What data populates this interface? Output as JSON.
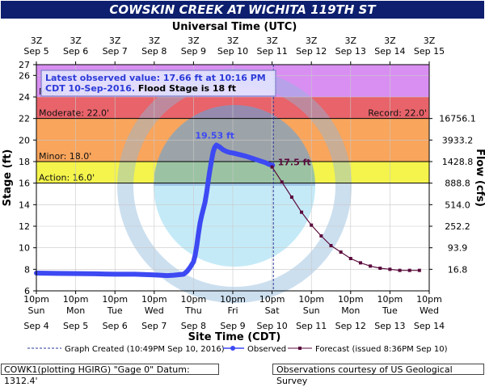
{
  "header": {
    "title": "COWSKIN CREEK AT WICHITA 119TH ST"
  },
  "chart_data": {
    "type": "line",
    "title": "COWSKIN CREEK AT WICHITA 119TH ST",
    "top_axis_label": "Universal Time (UTC)",
    "xlabel": "Site Time (CDT)",
    "ylabel": "Stage (ft)",
    "y2label": "Flow (cfs)",
    "ylim": [
      6,
      27
    ],
    "grid": true,
    "y_ticks": [
      6,
      8,
      10,
      12,
      14,
      16,
      18,
      20,
      22,
      24,
      26,
      27
    ],
    "y2_ticks": [
      {
        "stage": 8,
        "label": "16.8"
      },
      {
        "stage": 10,
        "label": "93.9"
      },
      {
        "stage": 12,
        "label": "252.2"
      },
      {
        "stage": 14,
        "label": "514.0"
      },
      {
        "stage": 16,
        "label": "888.8"
      },
      {
        "stage": 18,
        "label": "1428.8"
      },
      {
        "stage": 20,
        "label": "3933.2"
      },
      {
        "stage": 22,
        "label": "16756.1"
      }
    ],
    "x_domain_hours": [
      0,
      240
    ],
    "x_ticks_bottom": [
      {
        "h": 0,
        "l1": "10pm",
        "l2": "Sun",
        "l3": "Sep 4"
      },
      {
        "h": 24,
        "l1": "10pm",
        "l2": "Mon",
        "l3": "Sep 5"
      },
      {
        "h": 48,
        "l1": "10pm",
        "l2": "Tue",
        "l3": "Sep 6"
      },
      {
        "h": 72,
        "l1": "10pm",
        "l2": "Wed",
        "l3": "Sep 7"
      },
      {
        "h": 96,
        "l1": "10pm",
        "l2": "Thu",
        "l3": "Sep 8"
      },
      {
        "h": 120,
        "l1": "10pm",
        "l2": "Fri",
        "l3": "Sep 9"
      },
      {
        "h": 144,
        "l1": "10pm",
        "l2": "Sat",
        "l3": "Sep 10"
      },
      {
        "h": 168,
        "l1": "10pm",
        "l2": "Sun",
        "l3": "Sep 11"
      },
      {
        "h": 192,
        "l1": "10pm",
        "l2": "Mon",
        "l3": "Sep 12"
      },
      {
        "h": 216,
        "l1": "10pm",
        "l2": "Tue",
        "l3": "Sep 13"
      },
      {
        "h": 240,
        "l1": "10pm",
        "l2": "Wed",
        "l3": "Sep 14"
      }
    ],
    "x_ticks_top": [
      {
        "h": 0,
        "l1": "3Z",
        "l2": "Sep 5"
      },
      {
        "h": 24,
        "l1": "3Z",
        "l2": "Sep 6"
      },
      {
        "h": 48,
        "l1": "3Z",
        "l2": "Sep 7"
      },
      {
        "h": 72,
        "l1": "3Z",
        "l2": "Sep 8"
      },
      {
        "h": 96,
        "l1": "3Z",
        "l2": "Sep 9"
      },
      {
        "h": 120,
        "l1": "3Z",
        "l2": "Sep 10"
      },
      {
        "h": 144,
        "l1": "3Z",
        "l2": "Sep 11"
      },
      {
        "h": 168,
        "l1": "3Z",
        "l2": "Sep 12"
      },
      {
        "h": 192,
        "l1": "3Z",
        "l2": "Sep 13"
      },
      {
        "h": 216,
        "l1": "3Z",
        "l2": "Sep 14"
      },
      {
        "h": 240,
        "l1": "3Z",
        "l2": "Sep 15"
      }
    ],
    "flood_bands": [
      {
        "name": "Major",
        "from": 24,
        "to": 27,
        "color": "#d98ff2",
        "label": "Major: 24.0'"
      },
      {
        "name": "Moderate",
        "from": 22,
        "to": 24,
        "color": "#e8636a",
        "label": "Moderate: 22.0'"
      },
      {
        "name": "Minor",
        "from": 18,
        "to": 22,
        "color": "#f9a55c",
        "label": "Minor: 18.0'"
      },
      {
        "name": "Action",
        "from": 16,
        "to": 18,
        "color": "#f4f44c",
        "label": "Action: 16.0'"
      }
    ],
    "record_label": "Record: 22.0'",
    "graph_created_hour": 144.8,
    "observed": {
      "name": "Observed",
      "color": "#3d49f2",
      "x": [
        0,
        12,
        24,
        36,
        48,
        60,
        72,
        80,
        84,
        90,
        92,
        94,
        96,
        97,
        98,
        99,
        100,
        101,
        102,
        103,
        104,
        105,
        106,
        107,
        108,
        109,
        110,
        112,
        114,
        116,
        118,
        120,
        124,
        128,
        132,
        136,
        140,
        142,
        144.3
      ],
      "y": [
        7.65,
        7.62,
        7.6,
        7.58,
        7.55,
        7.55,
        7.48,
        7.42,
        7.45,
        7.55,
        7.8,
        8.2,
        8.7,
        9.3,
        10.2,
        11.3,
        12.3,
        13.0,
        13.6,
        14.2,
        15.1,
        16.2,
        17.2,
        18.1,
        18.9,
        19.35,
        19.53,
        19.35,
        19.1,
        18.95,
        18.85,
        18.8,
        18.65,
        18.5,
        18.3,
        18.1,
        17.9,
        17.75,
        17.66
      ]
    },
    "forecast": {
      "name": "Forecast (issued 8:36PM Sep 10)",
      "color": "#5a0a3c",
      "x": [
        144,
        150,
        156,
        162,
        168,
        174,
        180,
        186,
        192,
        198,
        204,
        210,
        216,
        222,
        228,
        234
      ],
      "y": [
        17.5,
        16.1,
        14.7,
        13.3,
        12.1,
        11.1,
        10.2,
        9.6,
        9.0,
        8.6,
        8.3,
        8.1,
        8.0,
        7.9,
        7.9,
        7.9
      ]
    },
    "annotations": {
      "peak_label": "19.53 ft",
      "peak_x": 108,
      "peak_y": 19.53,
      "forecast_label": "17.5 ft",
      "forecast_x": 144,
      "forecast_y": 17.5
    },
    "info_box": {
      "line1": "Latest observed value: 17.66 ft at 10:16 PM",
      "line2a": "CDT 10-Sep-2016.",
      "line2b": " Flood Stage is 18 ft"
    },
    "legend": {
      "created": "Graph Created (10:49PM Sep 10, 2016)",
      "observed": "Observed",
      "forecast": "Forecast (issued 8:36PM Sep 10)"
    },
    "colors": {
      "observed": "#3d49f2",
      "forecast": "#5a0a3c",
      "header_bg": "#0d1f6e"
    }
  },
  "footer": {
    "left": "COWK1(plotting HGIRG) \"Gage 0\" Datum: 1312.4'",
    "right": "Observations courtesy of US Geological Survey"
  }
}
